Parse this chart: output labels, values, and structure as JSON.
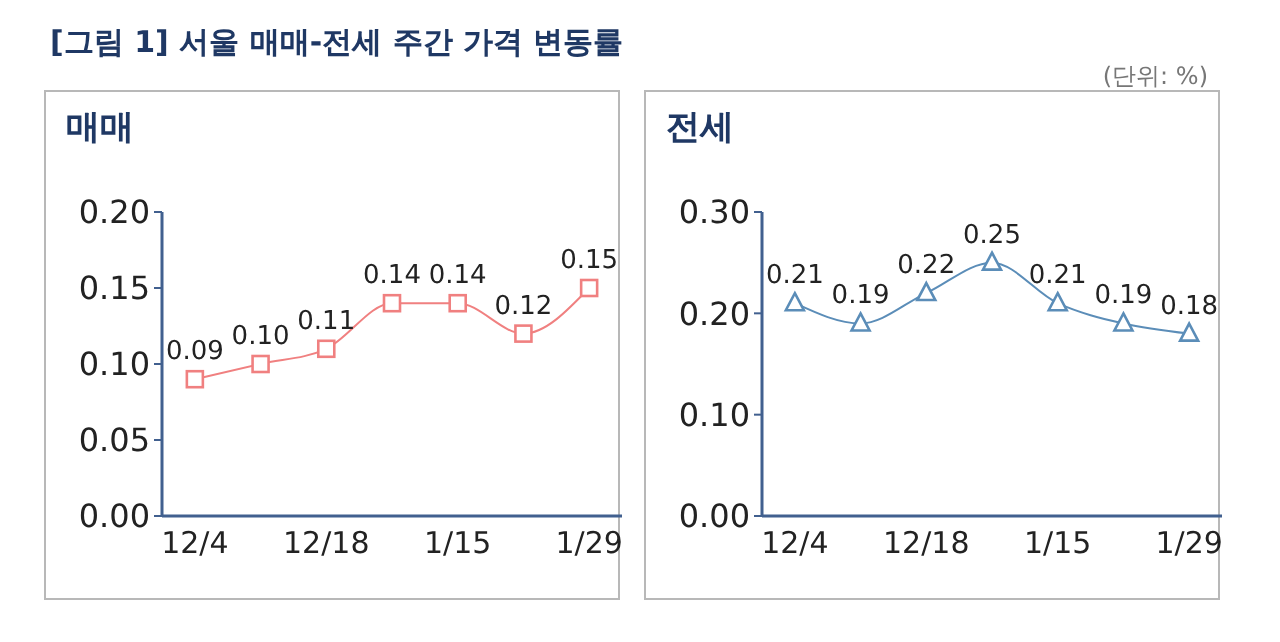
{
  "chart_data": [
    {
      "type": "line",
      "title": "[그림 1] 서울 매매-전세 주간 가격 변동률",
      "subtitle": "매매",
      "annotations": [
        "(단위: %)"
      ],
      "categories": [
        "12/4",
        null,
        "12/18",
        null,
        "1/15",
        null,
        "1/29"
      ],
      "series": [
        {
          "color": "#f08080",
          "values": [
            0.09,
            0.1,
            0.11,
            0.14,
            0.14,
            0.12,
            0.15
          ],
          "value_labels": [
            "0.09",
            "0.10",
            "0.11",
            "0.14",
            "0.14",
            "0.12",
            "0.15"
          ]
        }
      ],
      "ylim": [
        0,
        0.2
      ],
      "yticks": [
        {
          "value": 0,
          "label": "0.00"
        },
        {
          "value": 0.05,
          "label": "0.05"
        },
        {
          "value": 0.1,
          "label": "0.10"
        },
        {
          "value": 0.15,
          "label": "0.15"
        },
        {
          "value": 0.2,
          "label": "0.20"
        }
      ],
      "marker": "square",
      "grid": false,
      "legend": false
    },
    {
      "type": "line",
      "subtitle": "전세",
      "categories": [
        "12/4",
        null,
        "12/18",
        null,
        "1/15",
        null,
        "1/29"
      ],
      "series": [
        {
          "color": "#5b8db8",
          "values": [
            0.21,
            0.19,
            0.22,
            0.25,
            0.21,
            0.19,
            0.18
          ],
          "value_labels": [
            "0.21",
            "0.19",
            "0.22",
            "0.25",
            "0.21",
            "0.19",
            "0.18"
          ]
        }
      ],
      "ylim": [
        0,
        0.3
      ],
      "yticks": [
        {
          "value": 0,
          "label": "0.00"
        },
        {
          "value": 0.1,
          "label": "0.10"
        },
        {
          "value": 0.2,
          "label": "0.20"
        },
        {
          "value": 0.3,
          "label": "0.30"
        }
      ],
      "marker": "triangle",
      "grid": false,
      "legend": false
    }
  ]
}
